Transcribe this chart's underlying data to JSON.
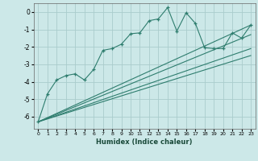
{
  "xlabel": "Humidex (Indice chaleur)",
  "xlim": [
    -0.5,
    23.5
  ],
  "ylim": [
    -6.7,
    0.5
  ],
  "yticks": [
    0,
    -1,
    -2,
    -3,
    -4,
    -5,
    -6
  ],
  "xticks": [
    0,
    1,
    2,
    3,
    4,
    5,
    6,
    7,
    8,
    9,
    10,
    11,
    12,
    13,
    14,
    15,
    16,
    17,
    18,
    19,
    20,
    21,
    22,
    23
  ],
  "bg_color": "#cce8e8",
  "line_color": "#2e7d6e",
  "grid_color": "#aacccc",
  "main_line": {
    "x": [
      0,
      1,
      2,
      3,
      4,
      5,
      6,
      7,
      8,
      9,
      10,
      11,
      12,
      13,
      14,
      15,
      16,
      17,
      18,
      19,
      20,
      21,
      22,
      23
    ],
    "y": [
      -6.3,
      -4.7,
      -3.9,
      -3.65,
      -3.55,
      -3.9,
      -3.3,
      -2.2,
      -2.1,
      -1.85,
      -1.25,
      -1.2,
      -0.5,
      -0.4,
      0.25,
      -1.1,
      -0.05,
      -0.65,
      -2.05,
      -2.1,
      -2.1,
      -1.2,
      -1.5,
      -0.75
    ]
  },
  "trend_lines": [
    {
      "x": [
        0,
        23
      ],
      "y": [
        -6.3,
        -0.75
      ]
    },
    {
      "x": [
        0,
        23
      ],
      "y": [
        -6.3,
        -1.3
      ]
    },
    {
      "x": [
        0,
        23
      ],
      "y": [
        -6.3,
        -2.1
      ]
    },
    {
      "x": [
        0,
        23
      ],
      "y": [
        -6.3,
        -2.5
      ]
    }
  ]
}
